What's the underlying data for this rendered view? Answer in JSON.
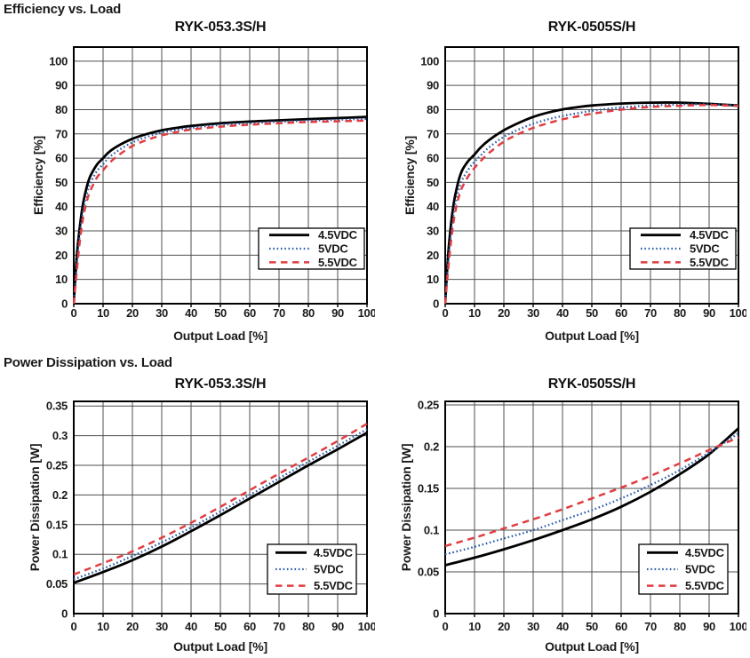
{
  "sections": [
    {
      "heading": "Efficiency vs. Load"
    },
    {
      "heading": "Power Dissipation vs. Load"
    }
  ],
  "colors": {
    "series_4_5vdc": "#000000",
    "series_5vdc": "#2a5ca8",
    "series_5_5vdc": "#e03e42",
    "grid": "#4f4f4f",
    "plot_border": "#000000",
    "text": "#1a1a1a",
    "legend_background": "#ffffff"
  },
  "chart_data": [
    {
      "type": "line",
      "section": "Efficiency vs. Load",
      "title": "RYK-053.3S/H",
      "xlabel": "Output Load [%]",
      "ylabel": "Efficiency [%]",
      "xlim": [
        0,
        100
      ],
      "ylim": [
        0,
        105.8
      ],
      "grid": true,
      "legend_position": "lower right",
      "xticks": [
        0,
        10,
        20,
        30,
        40,
        50,
        60,
        70,
        80,
        90,
        100
      ],
      "xtick_labels": [
        "0",
        "10",
        "20",
        "30",
        "40",
        "50",
        "60",
        "70",
        "80",
        "90",
        "100"
      ],
      "yticks": [
        0,
        10,
        20,
        30,
        40,
        50,
        60,
        70,
        80,
        90,
        100
      ],
      "ytick_labels": [
        "0",
        "10",
        "20",
        "30",
        "40",
        "50",
        "60",
        "70",
        "80",
        "90",
        "100"
      ],
      "series": [
        {
          "name": "4.5VDC",
          "color": "#000000",
          "style": "solid",
          "points": [
            [
              0,
              0
            ],
            [
              1,
              19
            ],
            [
              2,
              31
            ],
            [
              3,
              40
            ],
            [
              4,
              46
            ],
            [
              5,
              50.5
            ],
            [
              6,
              53.5
            ],
            [
              8,
              57.5
            ],
            [
              10,
              60
            ],
            [
              12,
              62.5
            ],
            [
              15,
              65
            ],
            [
              20,
              68
            ],
            [
              25,
              70
            ],
            [
              30,
              71.5
            ],
            [
              35,
              72.5
            ],
            [
              40,
              73.3
            ],
            [
              50,
              74.4
            ],
            [
              60,
              75.1
            ],
            [
              70,
              75.6
            ],
            [
              80,
              76.1
            ],
            [
              90,
              76.5
            ],
            [
              100,
              77
            ]
          ]
        },
        {
          "name": "5VDC",
          "color": "#2a5ca8",
          "style": "dotted",
          "points": [
            [
              0,
              0
            ],
            [
              1,
              16
            ],
            [
              2,
              28
            ],
            [
              3,
              37
            ],
            [
              4,
              43
            ],
            [
              5,
              47.5
            ],
            [
              6,
              50.5
            ],
            [
              8,
              54.8
            ],
            [
              10,
              57.5
            ],
            [
              12,
              60.2
            ],
            [
              15,
              63
            ],
            [
              20,
              66.5
            ],
            [
              25,
              68.8
            ],
            [
              30,
              70.5
            ],
            [
              35,
              71.6
            ],
            [
              40,
              72.5
            ],
            [
              50,
              73.7
            ],
            [
              60,
              74.4
            ],
            [
              70,
              75
            ],
            [
              80,
              75.4
            ],
            [
              90,
              75.8
            ],
            [
              100,
              76.2
            ]
          ]
        },
        {
          "name": "5.5VDC",
          "color": "#e03e42",
          "style": "dashed",
          "points": [
            [
              0,
              0
            ],
            [
              1,
              13
            ],
            [
              2,
              25
            ],
            [
              3,
              34
            ],
            [
              4,
              40
            ],
            [
              5,
              44.5
            ],
            [
              6,
              47.5
            ],
            [
              8,
              52.2
            ],
            [
              10,
              55
            ],
            [
              12,
              57.8
            ],
            [
              15,
              61
            ],
            [
              20,
              65
            ],
            [
              25,
              67.5
            ],
            [
              30,
              69.4
            ],
            [
              35,
              70.7
            ],
            [
              40,
              71.8
            ],
            [
              50,
              73
            ],
            [
              60,
              73.8
            ],
            [
              70,
              74.4
            ],
            [
              80,
              74.9
            ],
            [
              90,
              75.2
            ],
            [
              100,
              75.5
            ]
          ]
        }
      ]
    },
    {
      "type": "line",
      "section": "Efficiency vs. Load",
      "title": "RYK-0505S/H",
      "xlabel": "Output Load [%]",
      "ylabel": "Efficiency [%]",
      "xlim": [
        0,
        100
      ],
      "ylim": [
        0,
        105.8
      ],
      "grid": true,
      "legend_position": "lower right",
      "xticks": [
        0,
        10,
        20,
        30,
        40,
        50,
        60,
        70,
        80,
        90,
        100
      ],
      "xtick_labels": [
        "0",
        "10",
        "20",
        "30",
        "40",
        "50",
        "60",
        "70",
        "80",
        "90",
        "100"
      ],
      "yticks": [
        0,
        10,
        20,
        30,
        40,
        50,
        60,
        70,
        80,
        90,
        100
      ],
      "ytick_labels": [
        "0",
        "10",
        "20",
        "30",
        "40",
        "50",
        "60",
        "70",
        "80",
        "90",
        "100"
      ],
      "series": [
        {
          "name": "4.5VDC",
          "color": "#000000",
          "style": "solid",
          "points": [
            [
              0,
              0
            ],
            [
              1,
              20
            ],
            [
              2,
              33
            ],
            [
              3,
              42
            ],
            [
              4,
              48
            ],
            [
              5,
              52.5
            ],
            [
              6,
              55.5
            ],
            [
              8,
              59
            ],
            [
              10,
              61.5
            ],
            [
              12,
              64.3
            ],
            [
              15,
              67.5
            ],
            [
              20,
              71.5
            ],
            [
              25,
              74.5
            ],
            [
              30,
              77
            ],
            [
              35,
              78.8
            ],
            [
              40,
              80.1
            ],
            [
              45,
              81
            ],
            [
              50,
              81.7
            ],
            [
              60,
              82.5
            ],
            [
              70,
              82.9
            ],
            [
              80,
              82.9
            ],
            [
              90,
              82.4
            ],
            [
              100,
              81.7
            ]
          ]
        },
        {
          "name": "5VDC",
          "color": "#2a5ca8",
          "style": "dotted",
          "points": [
            [
              0,
              0
            ],
            [
              1,
              17
            ],
            [
              2,
              29
            ],
            [
              3,
              38
            ],
            [
              4,
              44
            ],
            [
              5,
              48.5
            ],
            [
              6,
              51.5
            ],
            [
              8,
              55.5
            ],
            [
              10,
              58.5
            ],
            [
              12,
              61
            ],
            [
              15,
              64.5
            ],
            [
              20,
              68.8
            ],
            [
              25,
              71.8
            ],
            [
              30,
              74.2
            ],
            [
              35,
              76
            ],
            [
              40,
              77.4
            ],
            [
              45,
              78.5
            ],
            [
              50,
              79.5
            ],
            [
              60,
              80.9
            ],
            [
              70,
              81.7
            ],
            [
              80,
              82.1
            ],
            [
              90,
              82.2
            ],
            [
              100,
              81.7
            ]
          ]
        },
        {
          "name": "5.5VDC",
          "color": "#e03e42",
          "style": "dashed",
          "points": [
            [
              0,
              0
            ],
            [
              1,
              14
            ],
            [
              2,
              26
            ],
            [
              3,
              35
            ],
            [
              4,
              41
            ],
            [
              5,
              45.5
            ],
            [
              6,
              48.5
            ],
            [
              8,
              52.8
            ],
            [
              10,
              56
            ],
            [
              12,
              58.7
            ],
            [
              15,
              62.2
            ],
            [
              20,
              66.8
            ],
            [
              25,
              70
            ],
            [
              30,
              72.5
            ],
            [
              35,
              74.4
            ],
            [
              40,
              76
            ],
            [
              45,
              77.2
            ],
            [
              50,
              78.3
            ],
            [
              60,
              80
            ],
            [
              70,
              81.1
            ],
            [
              80,
              81.6
            ],
            [
              90,
              81.9
            ],
            [
              100,
              81.5
            ]
          ]
        }
      ]
    },
    {
      "type": "line",
      "section": "Power Dissipation vs. Load",
      "title": "RYK-053.3S/H",
      "xlabel": "Output Load [%]",
      "ylabel": "Power Dissipation [W]",
      "xlim": [
        0,
        100
      ],
      "ylim": [
        0,
        0.3578
      ],
      "grid": true,
      "legend_position": "lower right",
      "xticks": [
        0,
        10,
        20,
        30,
        40,
        50,
        60,
        70,
        80,
        90,
        100
      ],
      "xtick_labels": [
        "0",
        "10",
        "20",
        "30",
        "40",
        "50",
        "60",
        "70",
        "80",
        "90",
        "100"
      ],
      "yticks": [
        0,
        0.05,
        0.1,
        0.15,
        0.2,
        0.25,
        0.3,
        0.35
      ],
      "ytick_labels": [
        "0",
        "0.05",
        "0.1",
        "0.15",
        "0.2",
        "0.25",
        "0.3",
        "0.35"
      ],
      "series": [
        {
          "name": "4.5VDC",
          "color": "#000000",
          "style": "solid",
          "points": [
            [
              0,
              0.052
            ],
            [
              10,
              0.07
            ],
            [
              20,
              0.09
            ],
            [
              30,
              0.113
            ],
            [
              40,
              0.139
            ],
            [
              50,
              0.166
            ],
            [
              60,
              0.194
            ],
            [
              70,
              0.222
            ],
            [
              80,
              0.25
            ],
            [
              90,
              0.277
            ],
            [
              100,
              0.305
            ]
          ]
        },
        {
          "name": "5VDC",
          "color": "#2a5ca8",
          "style": "dotted",
          "points": [
            [
              0,
              0.058
            ],
            [
              10,
              0.076
            ],
            [
              20,
              0.097
            ],
            [
              30,
              0.12
            ],
            [
              40,
              0.145
            ],
            [
              50,
              0.172
            ],
            [
              60,
              0.2
            ],
            [
              70,
              0.228
            ],
            [
              80,
              0.256
            ],
            [
              90,
              0.283
            ],
            [
              100,
              0.311
            ]
          ]
        },
        {
          "name": "5.5VDC",
          "color": "#e03e42",
          "style": "dashed",
          "points": [
            [
              0,
              0.066
            ],
            [
              10,
              0.085
            ],
            [
              20,
              0.105
            ],
            [
              30,
              0.128
            ],
            [
              40,
              0.153
            ],
            [
              50,
              0.18
            ],
            [
              60,
              0.208
            ],
            [
              70,
              0.236
            ],
            [
              80,
              0.263
            ],
            [
              90,
              0.291
            ],
            [
              100,
              0.32
            ]
          ]
        }
      ]
    },
    {
      "type": "line",
      "section": "Power Dissipation vs. Load",
      "title": "RYK-0505S/H",
      "xlabel": "Output Load [%]",
      "ylabel": "Power Dissipation [W]",
      "xlim": [
        0,
        100
      ],
      "ylim": [
        0,
        0.2543
      ],
      "grid": true,
      "legend_position": "lower right",
      "xticks": [
        0,
        10,
        20,
        30,
        40,
        50,
        60,
        70,
        80,
        90,
        100
      ],
      "xtick_labels": [
        "0",
        "10",
        "20",
        "30",
        "40",
        "50",
        "60",
        "70",
        "80",
        "90",
        "100"
      ],
      "yticks": [
        0,
        0.05,
        0.1,
        0.15,
        0.2,
        0.25
      ],
      "ytick_labels": [
        "0",
        "0.05",
        "0.1",
        "0.15",
        "0.2",
        "0.25"
      ],
      "series": [
        {
          "name": "4.5VDC",
          "color": "#000000",
          "style": "solid",
          "points": [
            [
              0,
              0.058
            ],
            [
              10,
              0.067
            ],
            [
              20,
              0.077
            ],
            [
              30,
              0.088
            ],
            [
              40,
              0.1
            ],
            [
              50,
              0.113
            ],
            [
              60,
              0.128
            ],
            [
              70,
              0.146
            ],
            [
              80,
              0.167
            ],
            [
              90,
              0.191
            ],
            [
              100,
              0.222
            ]
          ]
        },
        {
          "name": "5VDC",
          "color": "#2a5ca8",
          "style": "dotted",
          "points": [
            [
              0,
              0.071
            ],
            [
              10,
              0.08
            ],
            [
              20,
              0.09
            ],
            [
              30,
              0.1
            ],
            [
              40,
              0.112
            ],
            [
              50,
              0.124
            ],
            [
              60,
              0.138
            ],
            [
              70,
              0.154
            ],
            [
              80,
              0.172
            ],
            [
              90,
              0.193
            ],
            [
              100,
              0.216
            ]
          ]
        },
        {
          "name": "5.5VDC",
          "color": "#e03e42",
          "style": "dashed",
          "points": [
            [
              0,
              0.081
            ],
            [
              10,
              0.091
            ],
            [
              20,
              0.102
            ],
            [
              30,
              0.113
            ],
            [
              40,
              0.125
            ],
            [
              50,
              0.138
            ],
            [
              60,
              0.151
            ],
            [
              70,
              0.165
            ],
            [
              80,
              0.18
            ],
            [
              90,
              0.196
            ],
            [
              100,
              0.211
            ]
          ]
        }
      ]
    }
  ]
}
